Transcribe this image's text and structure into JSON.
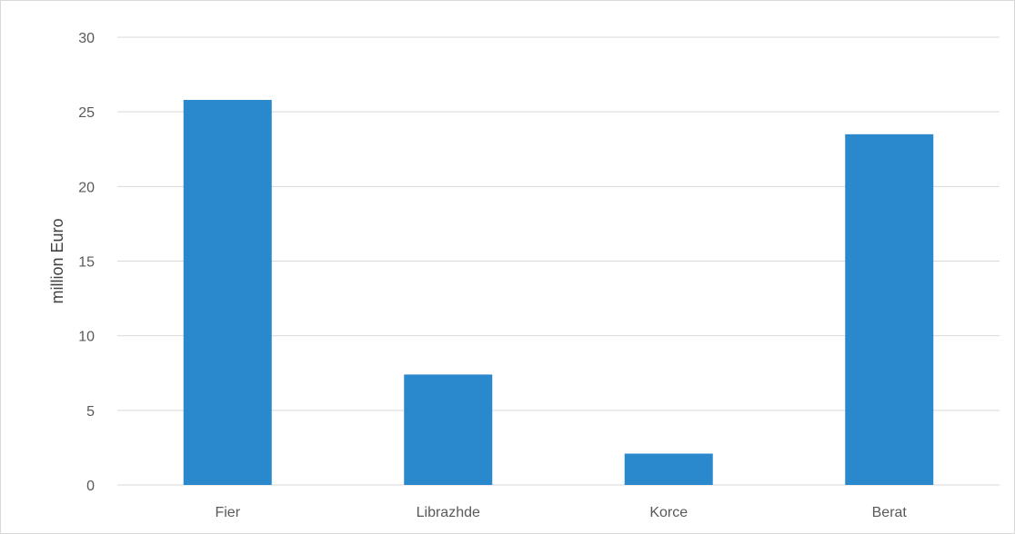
{
  "chart_data": {
    "type": "bar",
    "title": "",
    "xlabel": "",
    "ylabel": "million Euro",
    "categories": [
      "Fier",
      "Librazhde",
      "Korce",
      "Berat"
    ],
    "values": [
      25.8,
      7.4,
      2.1,
      23.5
    ],
    "ylim": [
      0,
      30
    ],
    "yticks": [
      0,
      5,
      10,
      15,
      20,
      25,
      30
    ],
    "grid": true,
    "legend": "none",
    "bar_color": "#2a88cc",
    "grid_color": "#d9d9d9"
  }
}
